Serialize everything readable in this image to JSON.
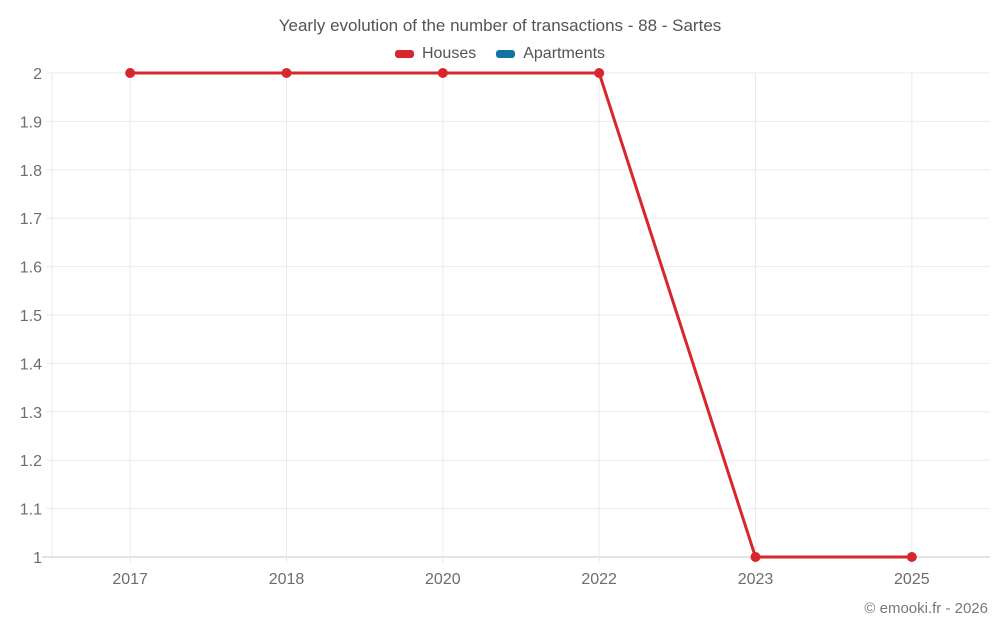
{
  "chart_data": {
    "type": "line",
    "title": "Yearly evolution of the number of transactions - 88 - Sartes",
    "categories": [
      "2017",
      "2018",
      "2020",
      "2022",
      "2023",
      "2025"
    ],
    "series": [
      {
        "name": "Houses",
        "color": "#d7272d",
        "values": [
          2,
          2,
          2,
          2,
          1,
          1
        ]
      },
      {
        "name": "Apartments",
        "color": "#1373a3",
        "values": []
      }
    ],
    "xlabel": "",
    "ylabel": "",
    "ylim": [
      1,
      2
    ],
    "yticks": [
      "2",
      "1.9",
      "1.8",
      "1.7",
      "1.6",
      "1.5",
      "1.4",
      "1.3",
      "1.2",
      "1.1",
      "1"
    ],
    "grid": true,
    "legend_position": "top"
  },
  "colors": {
    "grid": "#ebebeb",
    "axis": "#c7c7c7",
    "title_text": "#545454",
    "tick_text": "#6d6d6d"
  },
  "footer": {
    "copyright": "© emooki.fr - 2026"
  }
}
